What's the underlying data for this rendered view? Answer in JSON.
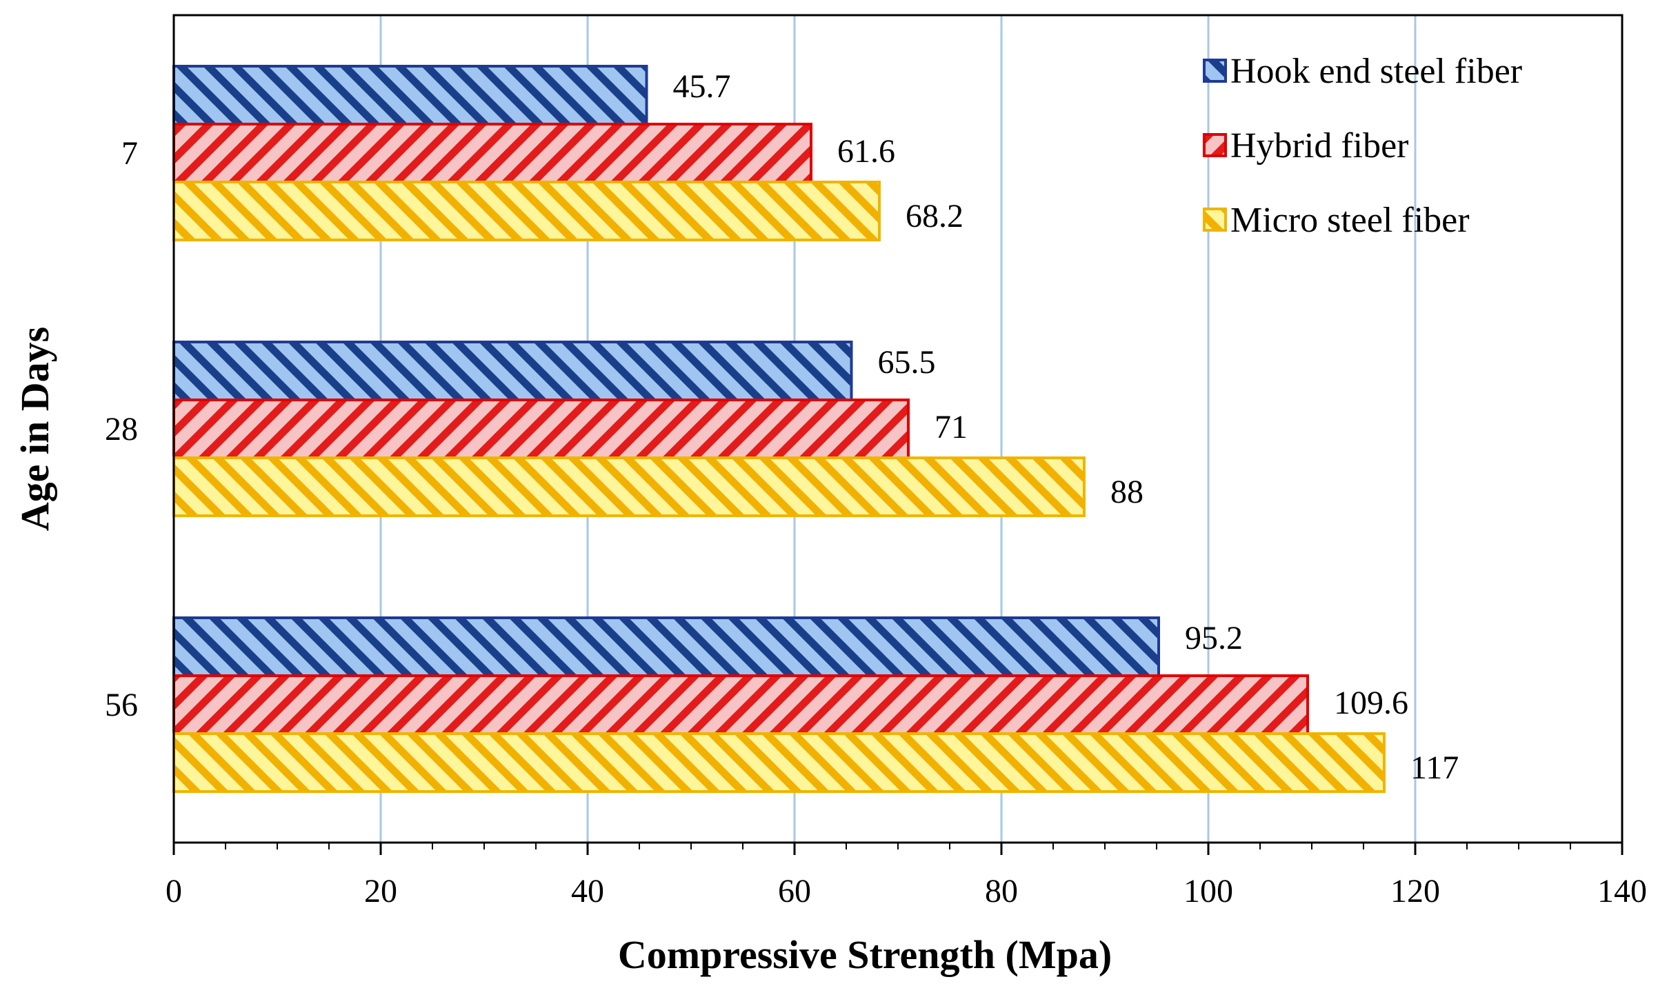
{
  "chart_data": {
    "type": "bar",
    "orientation": "horizontal",
    "title": "",
    "xlabel": "Compressive Strength (Mpa)",
    "ylabel": "Age in Days",
    "xlim": [
      0,
      140
    ],
    "x_ticks": [
      0,
      20,
      40,
      60,
      80,
      100,
      120,
      140
    ],
    "grid": "vertical",
    "legend_position": "top-right",
    "categories": [
      "7",
      "28",
      "56"
    ],
    "series": [
      {
        "name": "Hook end steel fiber",
        "values": [
          45.7,
          65.5,
          95.2
        ],
        "value_labels": [
          "45.7",
          "65.5",
          "95.2"
        ],
        "color": "#1f3a93",
        "fill": "#9fc5f0",
        "stripe": "#1a3f8a",
        "pattern": "back-diagonal"
      },
      {
        "name": "Hybrid fiber",
        "values": [
          61.6,
          71,
          109.6
        ],
        "value_labels": [
          "61.6",
          "71",
          "109.6"
        ],
        "color": "#e00000",
        "fill": "#f6c4c4",
        "stripe": "#e31b1b",
        "pattern": "forward-diagonal"
      },
      {
        "name": "Micro steel fiber",
        "values": [
          68.2,
          88,
          117
        ],
        "value_labels": [
          "68.2",
          "88",
          "117"
        ],
        "color": "#f0b400",
        "fill": "#fff59a",
        "stripe": "#f2b100",
        "pattern": "back-diagonal"
      }
    ],
    "colors": {
      "grid": "#a7c7e7",
      "axis": "#000000"
    }
  }
}
